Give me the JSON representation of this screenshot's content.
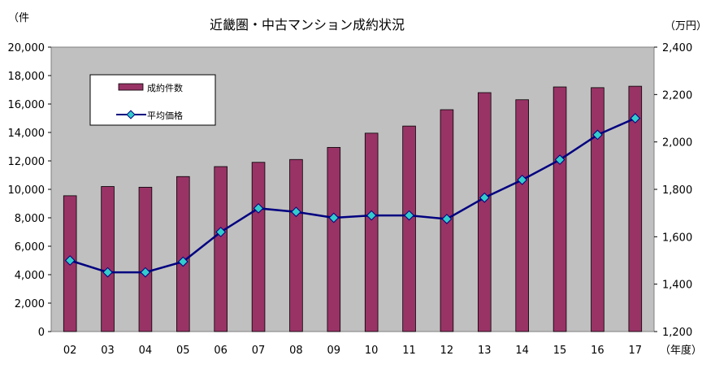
{
  "chart_data": {
    "type": "bar+line",
    "title": "近畿圏・中古マンション成約状況",
    "left_axis_unit": "（件",
    "right_axis_unit": "（万円）",
    "x_axis_unit": "（年度）",
    "categories": [
      "02",
      "03",
      "04",
      "05",
      "06",
      "07",
      "08",
      "09",
      "10",
      "11",
      "12",
      "13",
      "14",
      "15",
      "16",
      "17"
    ],
    "left_ylim": [
      0,
      20000
    ],
    "left_ticks": [
      "0",
      "2,000",
      "4,000",
      "6,000",
      "8,000",
      "10,000",
      "12,000",
      "14,000",
      "16,000",
      "18,000",
      "20,000"
    ],
    "right_ylim": [
      1200,
      2400
    ],
    "right_ticks": [
      "1,200",
      "1,400",
      "1,600",
      "1,800",
      "2,000",
      "2,200",
      "2,400"
    ],
    "series": [
      {
        "name": "成約件数",
        "type": "bar",
        "axis": "left",
        "color": "#993366",
        "values": [
          9550,
          10200,
          10150,
          10900,
          11600,
          11900,
          12100,
          12950,
          13950,
          14450,
          15600,
          16800,
          16300,
          17200,
          17150,
          17250
        ]
      },
      {
        "name": "平均価格",
        "type": "line",
        "axis": "right",
        "color": "#000080",
        "marker_color": "#33CCCC",
        "values": [
          1500,
          1450,
          1450,
          1495,
          1620,
          1720,
          1705,
          1680,
          1690,
          1690,
          1675,
          1765,
          1840,
          1925,
          2030,
          2100
        ]
      }
    ],
    "grid": false,
    "legend_position": "top-left inside plot"
  }
}
